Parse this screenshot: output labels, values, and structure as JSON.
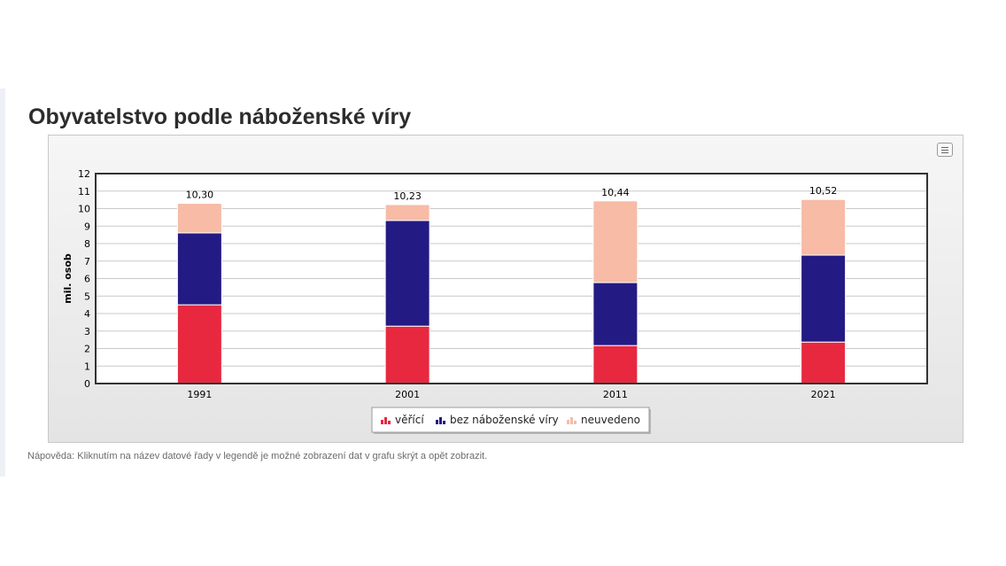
{
  "page": {
    "title": "Obyvatelstvo podle náboženské víry",
    "hint": "Nápověda: Kliknutím na název datové řady v legendě je možné zobrazení dat v grafu skrýt a opět zobrazit."
  },
  "icons": {
    "menu": "hamburger-menu-icon"
  },
  "chart_data": {
    "type": "bar",
    "stacked": true,
    "ylabel": "mil. osob",
    "xlabel": "",
    "ylim": [
      0,
      12
    ],
    "yticks": [
      0,
      1,
      2,
      3,
      4,
      5,
      6,
      7,
      8,
      9,
      10,
      11,
      12
    ],
    "grid": true,
    "legend_position": "bottom",
    "categories": [
      "1991",
      "2001",
      "2011",
      "2021"
    ],
    "totals": [
      "10,30",
      "10,23",
      "10,44",
      "10,52"
    ],
    "series": [
      {
        "name": "věřící",
        "color": "#e8283f",
        "values": [
          4.5,
          3.28,
          2.17,
          2.37
        ]
      },
      {
        "name": "bez náboženské víry",
        "color": "#241a84",
        "values": [
          4.11,
          6.04,
          3.6,
          4.97
        ]
      },
      {
        "name": "neuvedeno",
        "color": "#f7bba6",
        "values": [
          1.69,
          0.91,
          4.67,
          3.18
        ]
      }
    ]
  }
}
